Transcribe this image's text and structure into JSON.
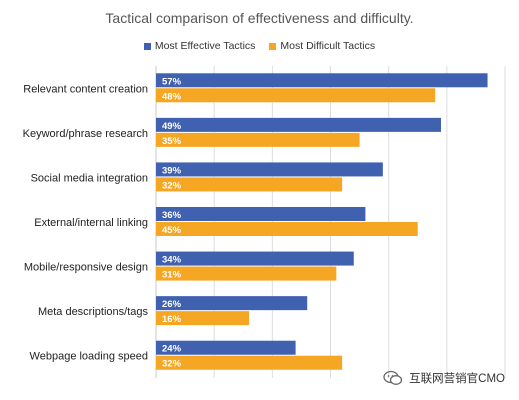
{
  "chart_data": {
    "type": "bar",
    "orientation": "horizontal",
    "title": "Tactical comparison of effectiveness and difficulty.",
    "categories": [
      "Relevant content creation",
      "Keyword/phrase research",
      "Social media integration",
      "External/internal linking",
      "Mobile/responsive design",
      "Meta descriptions/tags",
      "Webpage loading speed"
    ],
    "series": [
      {
        "name": "Most Effective Tactics",
        "values": [
          57,
          49,
          39,
          36,
          34,
          26,
          24
        ],
        "labels": [
          "57%",
          "49%",
          "39%",
          "36%",
          "34%",
          "26%",
          "24%"
        ],
        "color": "#4060b0"
      },
      {
        "name": "Most Difficult Tactics",
        "values": [
          48,
          35,
          32,
          45,
          31,
          16,
          32
        ],
        "labels": [
          "48%",
          "35%",
          "32%",
          "45%",
          "31%",
          "16%",
          "32%"
        ],
        "color": "#f5a623"
      }
    ],
    "xlim": [
      0,
      60
    ],
    "grid": true,
    "legend_position": "top"
  },
  "watermark": {
    "text": "互联网营销官CMO",
    "icon": "wechat-icon"
  }
}
